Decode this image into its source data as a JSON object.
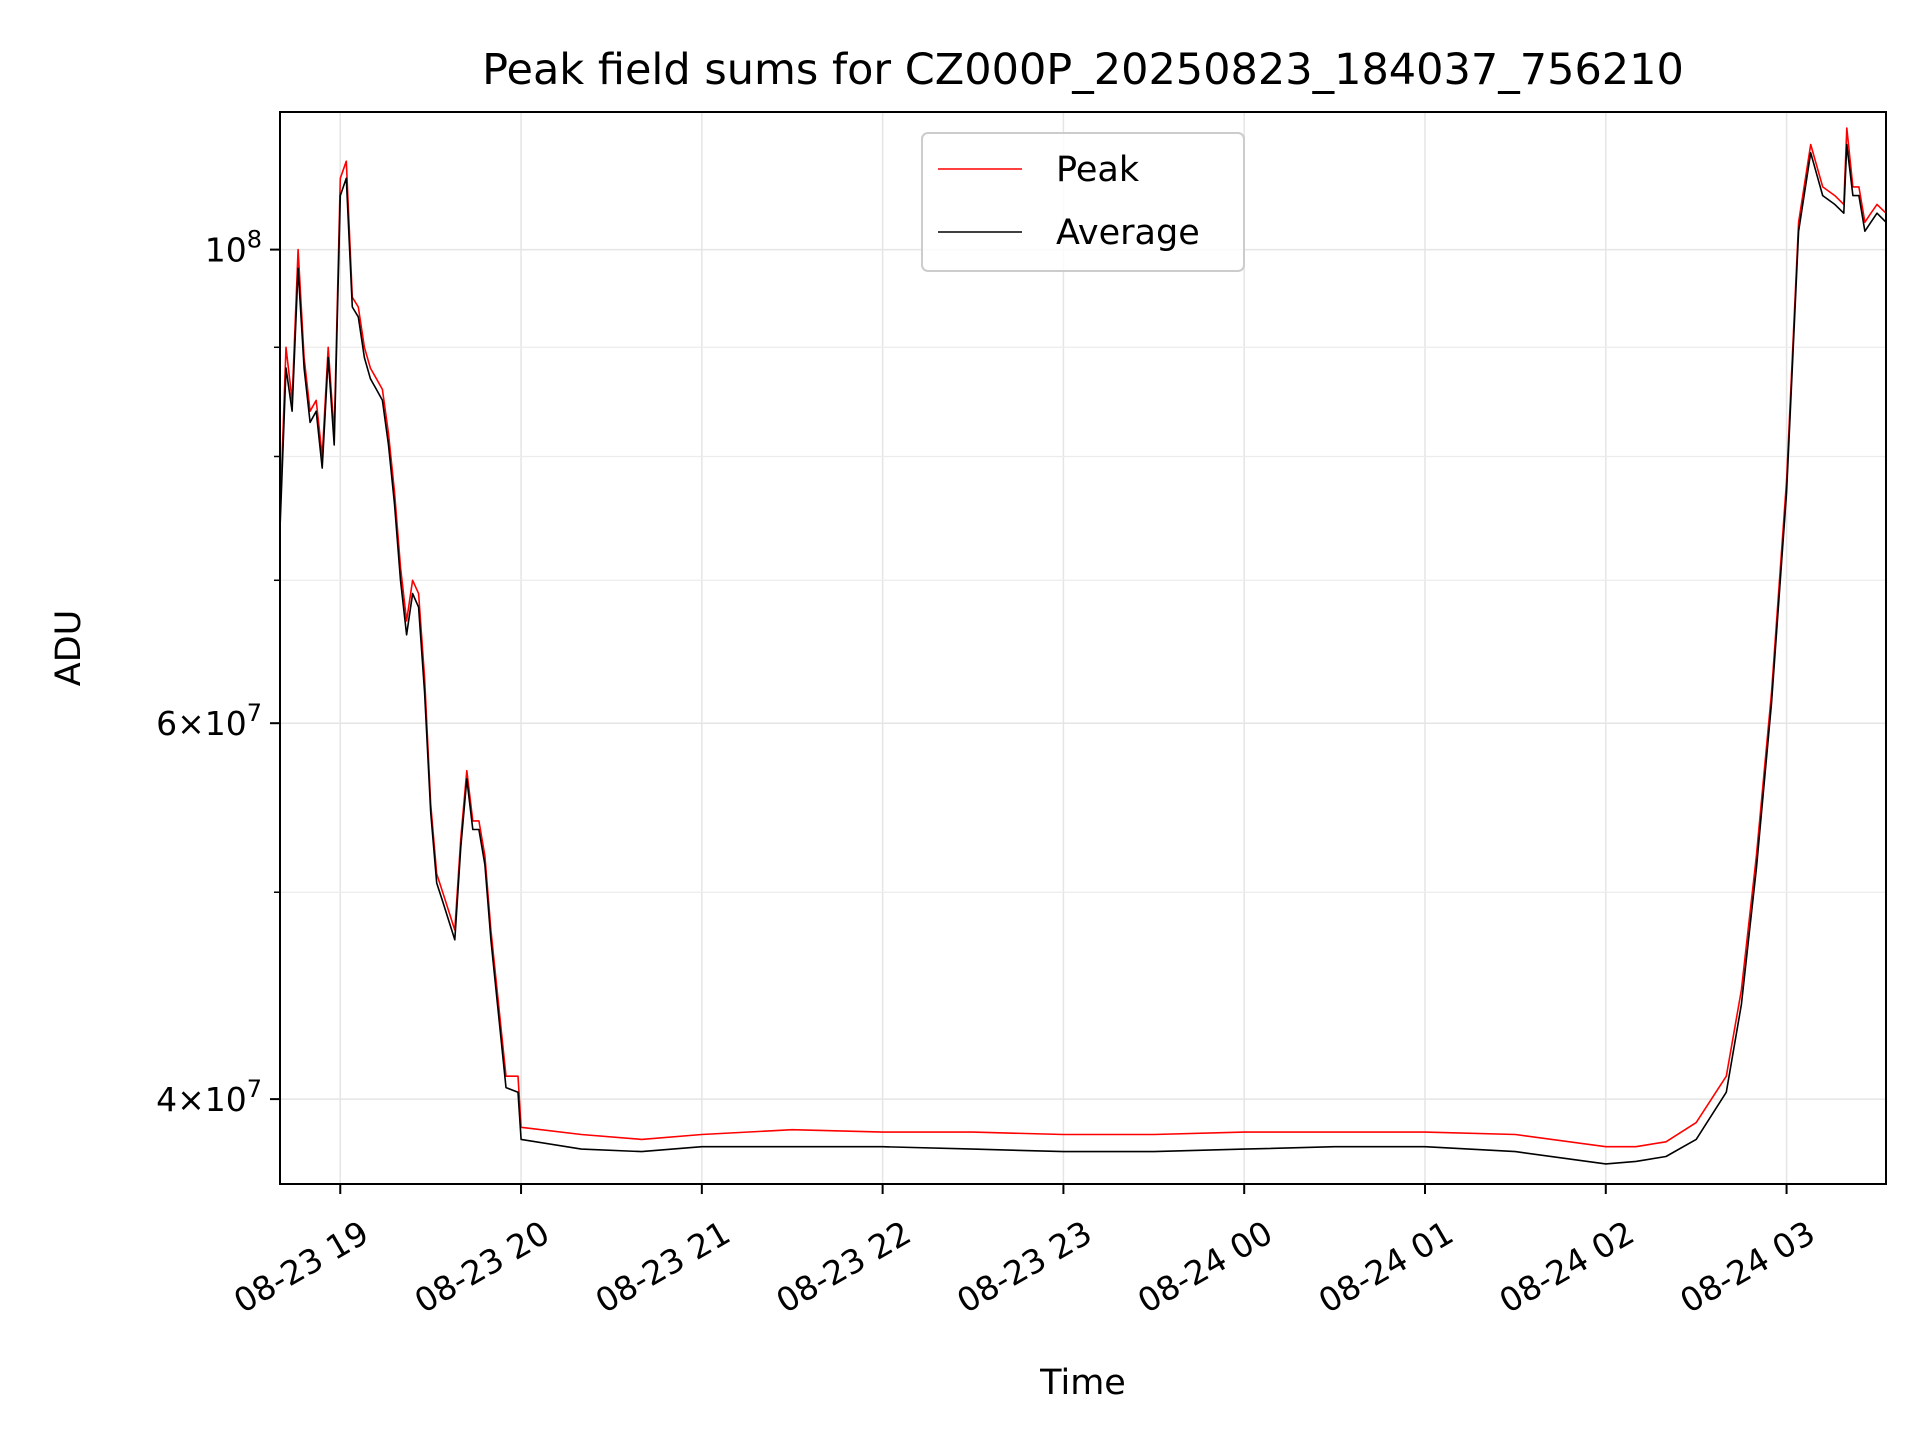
{
  "chart_data": {
    "type": "line",
    "title": "Peak field sums for CZ000P_20250823_184037_756210",
    "xlabel": "Time",
    "ylabel": "ADU",
    "yscale": "log",
    "grid": true,
    "legend_position": "top-center",
    "xlim": [
      "2025-08-23 18:40",
      "2025-08-24 03:33"
    ],
    "ylim": [
      36500000,
      116000000
    ],
    "x_ticks": [
      "08-23 19",
      "08-23 20",
      "08-23 21",
      "08-23 22",
      "08-23 23",
      "08-24 00",
      "08-24 01",
      "08-24 02",
      "08-24 03"
    ],
    "y_ticks": [
      {
        "value": 40000000,
        "base": "4",
        "exp": "7"
      },
      {
        "value": 60000000,
        "base": "6",
        "exp": "7"
      },
      {
        "value": 100000000,
        "base": null,
        "exp": "8"
      }
    ],
    "y_minor_ticks": [
      50000000,
      70000000,
      80000000,
      90000000
    ],
    "series": [
      {
        "name": "Peak",
        "color": "#ff0000",
        "x": [
          "2025-08-23 18:40",
          "2025-08-23 18:42",
          "2025-08-23 18:44",
          "2025-08-23 18:46",
          "2025-08-23 18:48",
          "2025-08-23 18:50",
          "2025-08-23 18:52",
          "2025-08-23 18:54",
          "2025-08-23 18:56",
          "2025-08-23 18:58",
          "2025-08-23 19:00",
          "2025-08-23 19:02",
          "2025-08-23 19:04",
          "2025-08-23 19:06",
          "2025-08-23 19:08",
          "2025-08-23 19:10",
          "2025-08-23 19:12",
          "2025-08-23 19:14",
          "2025-08-23 19:16",
          "2025-08-23 19:18",
          "2025-08-23 19:20",
          "2025-08-23 19:22",
          "2025-08-23 19:24",
          "2025-08-23 19:26",
          "2025-08-23 19:28",
          "2025-08-23 19:30",
          "2025-08-23 19:32",
          "2025-08-23 19:34",
          "2025-08-23 19:36",
          "2025-08-23 19:38",
          "2025-08-23 19:40",
          "2025-08-23 19:42",
          "2025-08-23 19:44",
          "2025-08-23 19:46",
          "2025-08-23 19:48",
          "2025-08-23 19:50",
          "2025-08-23 19:55",
          "2025-08-23 19:59",
          "2025-08-23 20:00",
          "2025-08-23 20:20",
          "2025-08-23 20:40",
          "2025-08-23 21:00",
          "2025-08-23 21:30",
          "2025-08-23 22:00",
          "2025-08-23 22:30",
          "2025-08-23 23:00",
          "2025-08-23 23:30",
          "2025-08-24 00:00",
          "2025-08-24 00:30",
          "2025-08-24 01:00",
          "2025-08-24 01:30",
          "2025-08-24 02:00",
          "2025-08-24 02:10",
          "2025-08-24 02:20",
          "2025-08-24 02:30",
          "2025-08-24 02:40",
          "2025-08-24 02:45",
          "2025-08-24 02:50",
          "2025-08-24 02:55",
          "2025-08-24 03:00",
          "2025-08-24 03:04",
          "2025-08-24 03:08",
          "2025-08-24 03:12",
          "2025-08-24 03:16",
          "2025-08-24 03:19",
          "2025-08-24 03:20",
          "2025-08-24 03:22",
          "2025-08-24 03:24",
          "2025-08-24 03:26",
          "2025-08-24 03:28",
          "2025-08-24 03:30",
          "2025-08-24 03:33"
        ],
        "y": [
          75000000,
          90000000,
          85000000,
          100000000,
          89000000,
          84000000,
          85000000,
          80000000,
          90000000,
          82000000,
          108000000,
          110000000,
          95000000,
          94000000,
          90000000,
          88000000,
          87000000,
          86000000,
          82000000,
          77000000,
          71000000,
          67000000,
          70000000,
          69000000,
          63000000,
          55000000,
          51000000,
          50000000,
          49000000,
          48000000,
          53000000,
          57000000,
          54000000,
          54000000,
          52000000,
          48000000,
          41000000,
          41000000,
          38800000,
          38500000,
          38300000,
          38500000,
          38700000,
          38600000,
          38600000,
          38500000,
          38500000,
          38600000,
          38600000,
          38600000,
          38500000,
          38000000,
          38000000,
          38200000,
          39000000,
          41000000,
          45000000,
          52000000,
          62000000,
          78000000,
          103000000,
          112000000,
          107000000,
          106000000,
          105000000,
          114000000,
          107000000,
          107000000,
          103000000,
          104000000,
          105000000,
          104000000
        ]
      },
      {
        "name": "Average",
        "color": "#000000",
        "x": [
          "2025-08-23 18:40",
          "2025-08-23 18:42",
          "2025-08-23 18:44",
          "2025-08-23 18:46",
          "2025-08-23 18:48",
          "2025-08-23 18:50",
          "2025-08-23 18:52",
          "2025-08-23 18:54",
          "2025-08-23 18:56",
          "2025-08-23 18:58",
          "2025-08-23 19:00",
          "2025-08-23 19:02",
          "2025-08-23 19:04",
          "2025-08-23 19:06",
          "2025-08-23 19:08",
          "2025-08-23 19:10",
          "2025-08-23 19:12",
          "2025-08-23 19:14",
          "2025-08-23 19:16",
          "2025-08-23 19:18",
          "2025-08-23 19:20",
          "2025-08-23 19:22",
          "2025-08-23 19:24",
          "2025-08-23 19:26",
          "2025-08-23 19:28",
          "2025-08-23 19:30",
          "2025-08-23 19:32",
          "2025-08-23 19:34",
          "2025-08-23 19:36",
          "2025-08-23 19:38",
          "2025-08-23 19:40",
          "2025-08-23 19:42",
          "2025-08-23 19:44",
          "2025-08-23 19:46",
          "2025-08-23 19:48",
          "2025-08-23 19:50",
          "2025-08-23 19:55",
          "2025-08-23 19:59",
          "2025-08-23 20:00",
          "2025-08-23 20:20",
          "2025-08-23 20:40",
          "2025-08-23 21:00",
          "2025-08-23 21:30",
          "2025-08-23 22:00",
          "2025-08-23 22:30",
          "2025-08-23 23:00",
          "2025-08-23 23:30",
          "2025-08-24 00:00",
          "2025-08-24 00:30",
          "2025-08-24 01:00",
          "2025-08-24 01:30",
          "2025-08-24 02:00",
          "2025-08-24 02:10",
          "2025-08-24 02:20",
          "2025-08-24 02:30",
          "2025-08-24 02:40",
          "2025-08-24 02:45",
          "2025-08-24 02:50",
          "2025-08-24 02:55",
          "2025-08-24 03:00",
          "2025-08-24 03:04",
          "2025-08-24 03:08",
          "2025-08-24 03:12",
          "2025-08-24 03:16",
          "2025-08-24 03:19",
          "2025-08-24 03:20",
          "2025-08-24 03:22",
          "2025-08-24 03:24",
          "2025-08-24 03:26",
          "2025-08-24 03:28",
          "2025-08-24 03:30",
          "2025-08-24 03:33"
        ],
        "y": [
          74000000,
          88000000,
          84000000,
          98000000,
          88000000,
          83000000,
          84000000,
          79000000,
          89000000,
          81000000,
          106000000,
          108000000,
          94000000,
          93000000,
          89000000,
          87000000,
          86000000,
          85000000,
          81000000,
          76000000,
          70000000,
          66000000,
          69000000,
          68000000,
          62000000,
          54500000,
          50500000,
          49500000,
          48500000,
          47500000,
          52500000,
          56500000,
          53500000,
          53500000,
          51500000,
          47500000,
          40500000,
          40300000,
          38300000,
          37900000,
          37800000,
          38000000,
          38000000,
          38000000,
          37900000,
          37800000,
          37800000,
          37900000,
          38000000,
          38000000,
          37800000,
          37300000,
          37400000,
          37600000,
          38300000,
          40300000,
          44300000,
          51300000,
          61300000,
          77000000,
          102000000,
          111000000,
          106000000,
          105000000,
          104000000,
          112000000,
          106000000,
          106000000,
          102000000,
          103000000,
          104000000,
          103000000
        ]
      }
    ]
  }
}
